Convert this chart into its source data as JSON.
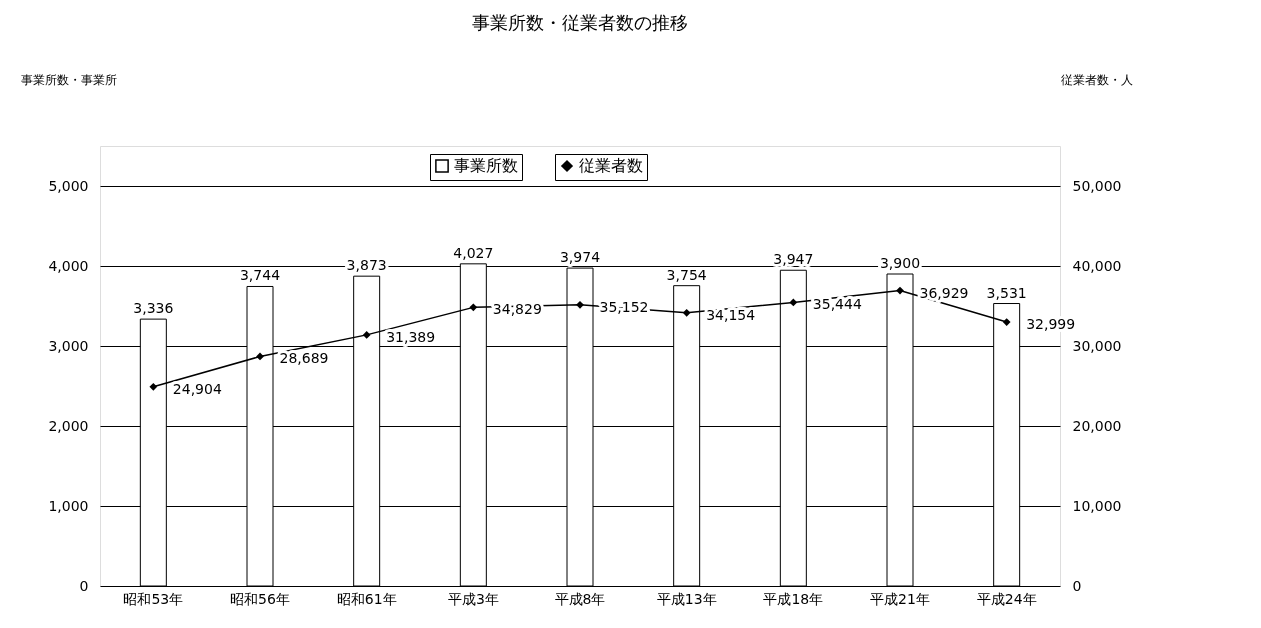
{
  "chart_data": {
    "type": "bar",
    "title": "事業所数・従業者数の推移",
    "ylabel": "事業所数・事業所",
    "y2label": "従業者数・人",
    "categories": [
      "昭和53年",
      "昭和56年",
      "昭和61年",
      "平成3年",
      "平成8年",
      "平成13年",
      "平成18年",
      "平成21年",
      "平成24年"
    ],
    "series": [
      {
        "name": "事業所数",
        "color": "#ffffff",
        "values": [
          3336,
          3744,
          3873,
          4027,
          3974,
          3754,
          3947,
          3900,
          3531
        ],
        "value_labels": [
          "3,336",
          "3,744",
          "3,873",
          "4,027",
          "3,974",
          "3,754",
          "3,947",
          "3,900",
          "3,531"
        ]
      },
      {
        "name": "従業者数",
        "type": "line",
        "axis": "y2",
        "color": "#000000",
        "values": [
          24904,
          28689,
          31389,
          34829,
          35152,
          34154,
          35444,
          36929,
          32999
        ],
        "value_labels": [
          "24,904",
          "28,689",
          "31,389",
          "34,829",
          "35,152",
          "34,154",
          "35,444",
          "36,929",
          "32,999"
        ]
      }
    ],
    "ylim": [
      0,
      5500
    ],
    "yticks": [
      0,
      {
        "value": 1000,
        "label": "1,000"
      },
      {
        "value": 2000,
        "label": "2,000"
      },
      {
        "value": 3000,
        "label": "3,000"
      },
      {
        "value": 4000,
        "label": "4,000"
      },
      {
        "value": 5000,
        "label": "5,000"
      }
    ],
    "y2lim": [
      0,
      55000
    ],
    "y2ticks": [
      0,
      {
        "value": 10000,
        "label": "10,000"
      },
      {
        "value": 20000,
        "label": "20,000"
      },
      {
        "value": 30000,
        "label": "30,000"
      },
      {
        "value": 40000,
        "label": "40,000"
      },
      {
        "value": 50000,
        "label": "50,000"
      }
    ],
    "grid": "y",
    "legend": "top",
    "marker": "diamond"
  }
}
